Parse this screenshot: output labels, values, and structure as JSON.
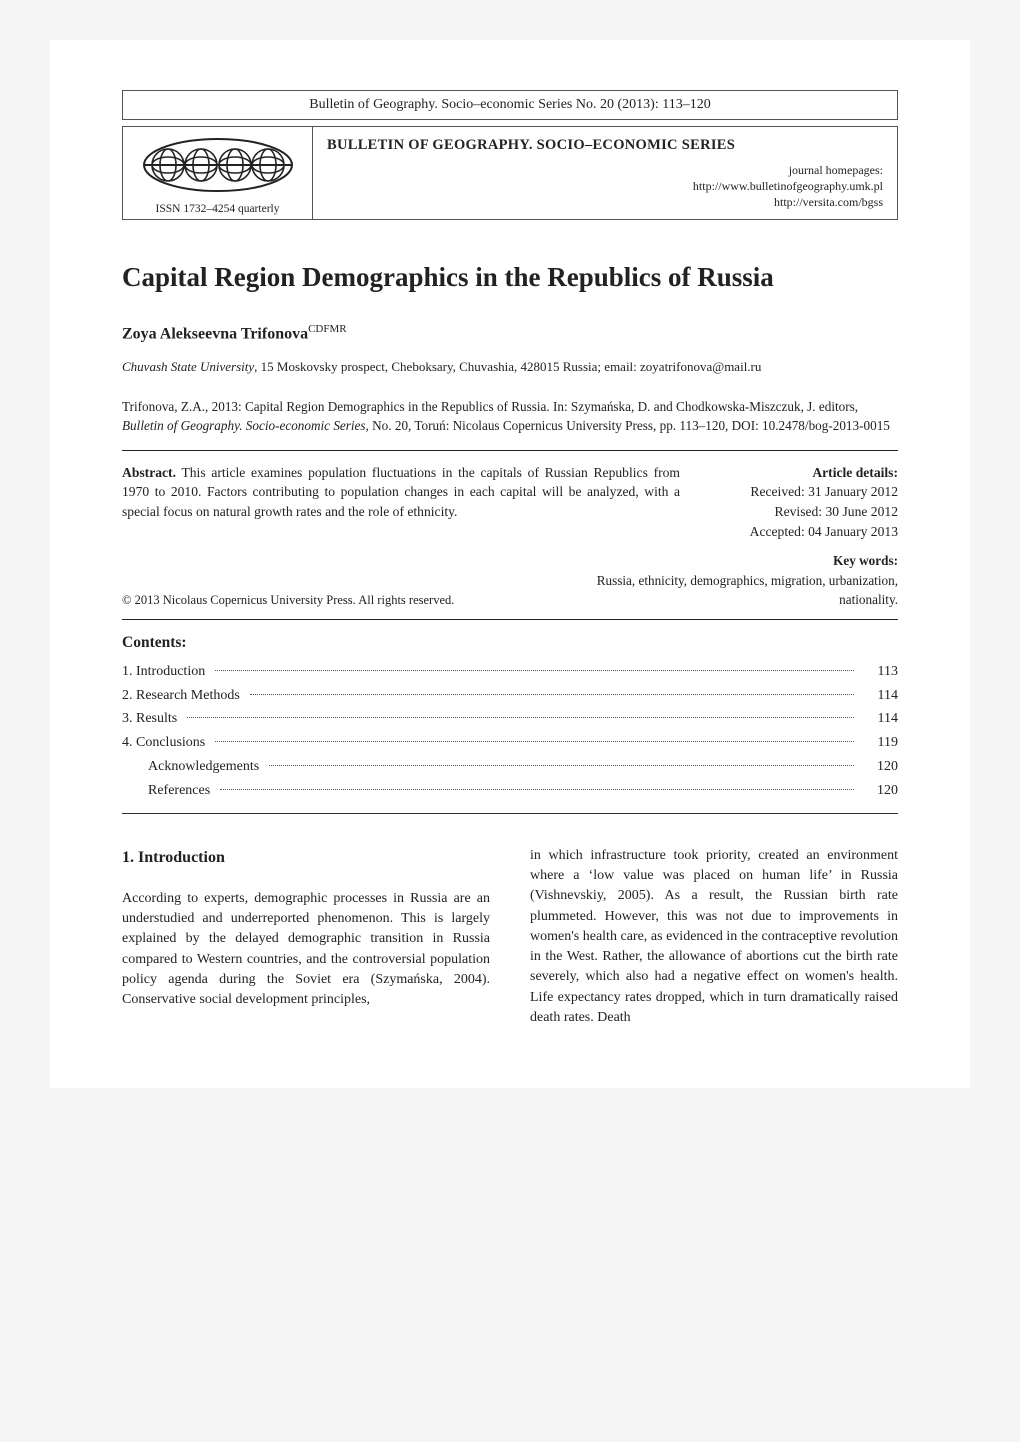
{
  "header": {
    "series_line": "Bulletin of Geography. Socio–economic Series No. 20 (2013): 113–120",
    "issn": "ISSN 1732–4254 quarterly",
    "series_title": "BULLETIN OF GEOGRAPHY. SOCIO–ECONOMIC SERIES",
    "homepages_label": "journal homepages:",
    "homepage1": "http://www.bulletinofgeography.umk.pl",
    "homepage2": "http://versita.com/bgss"
  },
  "title": "Capital Region Demographics in the Republics of Russia",
  "author": {
    "name": "Zoya Alekseevna Trifonova",
    "sup": "CDFMR"
  },
  "affiliation": {
    "institution": "Chuvash State University",
    "rest": ", 15 Moskovsky prospect, Cheboksary, Chuvashia, 428015 Russia; email: zoyatrifonova@mail.ru"
  },
  "citation": {
    "line1": "Trifonova, Z.A., 2013: Capital Region Demographics in the Republics of Russia. In: Szymańska, D. and Chodkowska-Miszczuk, J. editors, ",
    "journal": "Bulletin of Geography. Socio-economic Series,",
    "line2": " No. 20, Toruń: Nicolaus Copernicus University Press, pp. 113–120, DOI: 10.2478/bog-2013-0015"
  },
  "abstract": {
    "label": "Abstract.",
    "text": " This article examines population fluctuations in the capitals of Russian Republics from 1970 to 2010. Factors contributing to population changes in each capital will be analyzed, with a special focus on natural growth rates and the role of ethnicity."
  },
  "details": {
    "label": "Article details:",
    "received": "Received: 31 January 2012",
    "revised": "Revised: 30 June 2012",
    "accepted": "Accepted: 04 January 2013"
  },
  "copyright": "© 2013 Nicolaus Copernicus University Press. All rights reserved.",
  "keywords": {
    "label": "Key words:",
    "text": "Russia, ethnicity, demographics, migration, urbanization, nationality."
  },
  "contents": {
    "title": "Contents:",
    "items": [
      {
        "label": "1. Introduction",
        "page": "113",
        "indent": false
      },
      {
        "label": "2. Research Methods",
        "page": "114",
        "indent": false
      },
      {
        "label": "3. Results",
        "page": "114",
        "indent": false
      },
      {
        "label": "4. Conclusions",
        "page": "119",
        "indent": false
      },
      {
        "label": "Acknowledgements",
        "page": "120",
        "indent": true
      },
      {
        "label": "References",
        "page": "120",
        "indent": true
      }
    ]
  },
  "section": {
    "heading": "1.   Introduction",
    "col1": "According to experts, demographic processes in Russia are an understudied and underreported phenomenon. This is largely explained by the delayed demographic transition in Russia compared to Western countries, and the controversial population policy agenda during the Soviet era (Szymańska, 2004). Conservative social development principles,",
    "col2": "in which infrastructure took priority, created an environment where a ‘low value was placed on human life’ in Russia (Vishnevskiy, 2005). As a result, the Russian birth rate plummeted. However, this was not due to improvements in women's health care, as evidenced in the contraceptive revolution in the West. Rather, the allowance of abortions cut the birth rate severely, which also had a negative effect on women's health. Life expectancy rates dropped, which in turn dramatically raised death rates. Death"
  }
}
